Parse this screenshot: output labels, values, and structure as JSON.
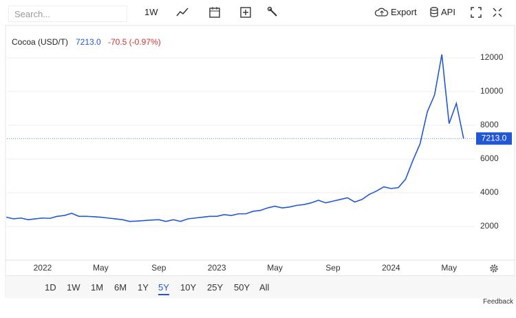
{
  "toolbar": {
    "search": "Search...",
    "interval": "1W",
    "export": "Export",
    "api": "API"
  },
  "chart_data": {
    "type": "line",
    "header": {
      "name": "Cocoa (USD/T)",
      "price": "7213.0",
      "change": "-70.5 (-0.97%)"
    },
    "categories": [
      null,
      null,
      null,
      null,
      null,
      "2022",
      null,
      null,
      null,
      null,
      null,
      null,
      null,
      "May",
      null,
      null,
      null,
      null,
      null,
      null,
      null,
      "Sep",
      null,
      null,
      null,
      null,
      null,
      null,
      null,
      "2023",
      null,
      null,
      null,
      null,
      null,
      null,
      null,
      "May",
      null,
      null,
      null,
      null,
      null,
      null,
      null,
      "Sep",
      null,
      null,
      null,
      null,
      null,
      null,
      null,
      "2024",
      null,
      null,
      null,
      null,
      null,
      null,
      null,
      "May",
      null,
      null
    ],
    "series": [
      {
        "name": "Cocoa (USD/T)",
        "color": "#2157d3",
        "values": [
          2550,
          2450,
          2500,
          2400,
          2450,
          2500,
          2480,
          2600,
          2650,
          2780,
          2600,
          2600,
          2580,
          2550,
          2500,
          2450,
          2400,
          2300,
          2320,
          2350,
          2380,
          2400,
          2300,
          2400,
          2300,
          2450,
          2500,
          2550,
          2600,
          2600,
          2700,
          2650,
          2750,
          2750,
          2900,
          2950,
          3100,
          3200,
          3100,
          3150,
          3250,
          3300,
          3400,
          3550,
          3400,
          3500,
          3600,
          3700,
          3450,
          3600,
          3900,
          4100,
          4350,
          4250,
          4300,
          4800,
          5900,
          6900,
          8800,
          9800,
          12200,
          8100,
          9300,
          7213
        ]
      }
    ],
    "ylim": [
      0,
      14000
    ],
    "yticks": [
      2000,
      4000,
      6000,
      8000,
      10000,
      12000
    ],
    "grid": true
  },
  "ranges": [
    "1D",
    "1W",
    "1M",
    "6M",
    "1Y",
    "5Y",
    "10Y",
    "25Y",
    "50Y",
    "All"
  ],
  "selected_range": "5Y",
  "feedback": "Feedback"
}
